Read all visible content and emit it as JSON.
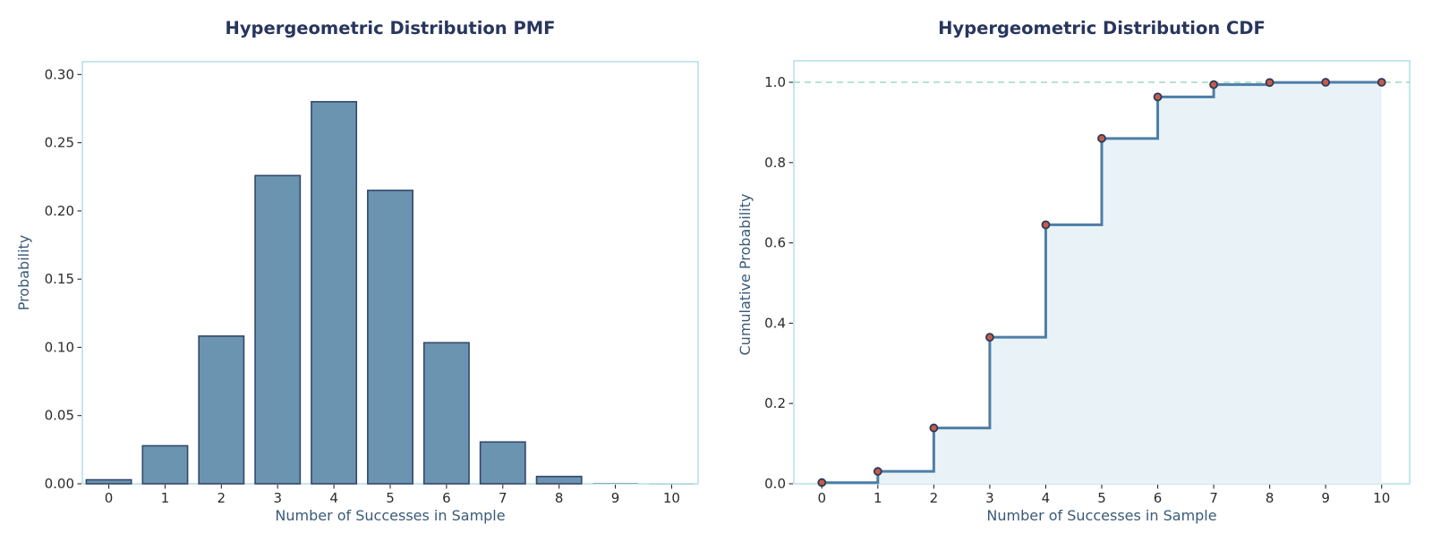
{
  "palette": {
    "background": "#ffffff",
    "spine": "#aedde8",
    "tick": "#2b2b2b",
    "title_color": "#28365e",
    "axis_label_color": "#3a5a78",
    "bar_fill": "#6b94b1",
    "bar_edge": "#33476b",
    "step_line": "#4d7ea7",
    "marker_fill": "#c75b49",
    "marker_edge": "#2c3a5a",
    "cdf_fill": "#e9f3f7",
    "dashed_line": "#8bd0ba"
  },
  "chart_data": [
    {
      "type": "bar",
      "title": "Hypergeometric Distribution PMF",
      "xlabel": "Number of Successes in Sample",
      "ylabel": "Probability",
      "categories": [
        0,
        1,
        2,
        3,
        4,
        5,
        6,
        7,
        8,
        9,
        10
      ],
      "values": [
        0.00292,
        0.02786,
        0.10826,
        0.22593,
        0.28006,
        0.21508,
        0.1034,
        0.03064,
        0.00533,
        0.00049,
        2e-05
      ],
      "bar_width": 0.8,
      "xlim": [
        -0.47,
        10.47
      ],
      "ylim": [
        0,
        0.3094
      ],
      "xticks": [
        0,
        1,
        2,
        3,
        4,
        5,
        6,
        7,
        8,
        9,
        10
      ],
      "xtick_labels": [
        "0",
        "1",
        "2",
        "3",
        "4",
        "5",
        "6",
        "7",
        "8",
        "9",
        "10"
      ],
      "yticks": [
        0,
        0.05,
        0.1,
        0.15,
        0.2,
        0.25,
        0.3
      ],
      "ytick_labels": [
        "0.00",
        "0.05",
        "0.10",
        "0.15",
        "0.20",
        "0.25",
        "0.30"
      ],
      "grid": false,
      "legend": null
    },
    {
      "type": "line",
      "subtype": "step-post",
      "title": "Hypergeometric Distribution CDF",
      "xlabel": "Number of Successes in Sample",
      "ylabel": "Cumulative Probability",
      "x": [
        0,
        1,
        2,
        3,
        4,
        5,
        6,
        7,
        8,
        9,
        10
      ],
      "values": [
        0.00292,
        0.03078,
        0.13904,
        0.36497,
        0.64503,
        0.86012,
        0.96352,
        0.99416,
        0.99949,
        0.99998,
        1.0
      ],
      "marker": "o",
      "fill_under": true,
      "reference_line": {
        "y": 1.0,
        "style": "dashed"
      },
      "xlim": [
        -0.5,
        10.5
      ],
      "ylim": [
        0,
        1.0535
      ],
      "xticks": [
        0,
        1,
        2,
        3,
        4,
        5,
        6,
        7,
        8,
        9,
        10
      ],
      "xtick_labels": [
        "0",
        "1",
        "2",
        "3",
        "4",
        "5",
        "6",
        "7",
        "8",
        "9",
        "10"
      ],
      "yticks": [
        0,
        0.2,
        0.4,
        0.6,
        0.8,
        1.0
      ],
      "ytick_labels": [
        "0.0",
        "0.2",
        "0.4",
        "0.6",
        "0.8",
        "1.0"
      ],
      "grid": false,
      "legend": null
    }
  ]
}
